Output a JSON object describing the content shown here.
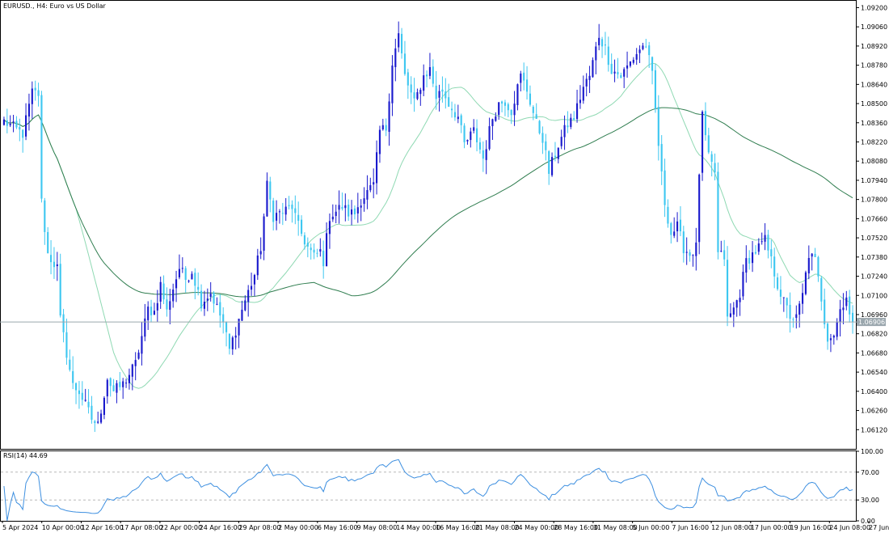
{
  "window": {
    "title": "EURUSD., H4:  Euro vs US Dollar"
  },
  "colors": {
    "background": "#ffffff",
    "bull": "#1a1acd",
    "bear": "#3ec7f0",
    "ma_fast": "#8fd9b3",
    "ma_slow": "#2f7d4f",
    "rsi_line": "#3d8fe0",
    "price_line": "#9aa6ad",
    "price_tag": "#9aa6ad"
  },
  "chart_data": [
    {
      "type": "candlestick",
      "title": "EURUSD., H4:  Euro vs US Dollar",
      "ylim": [
        1.0598,
        1.0925
      ],
      "y_ticks": [
        "1.09200",
        "1.09060",
        "1.08920",
        "1.08780",
        "1.08640",
        "1.08500",
        "1.08360",
        "1.08220",
        "1.08080",
        "1.07940",
        "1.07800",
        "1.07660",
        "1.07520",
        "1.07380",
        "1.07240",
        "1.07100",
        "1.06960",
        "1.06820",
        "1.06680",
        "1.06540",
        "1.06400",
        "1.06260",
        "1.06120"
      ],
      "x_ticks": [
        "5 Apr 2024",
        "10 Apr 00:00",
        "12 Apr 16:00",
        "17 Apr 08:00",
        "22 Apr 00:00",
        "24 Apr 16:00",
        "29 Apr 08:00",
        "2 May 00:00",
        "6 May 16:00",
        "9 May 08:00",
        "14 May 00:00",
        "16 May 16:00",
        "21 May 08:00",
        "24 May 00:00",
        "28 May 16:00",
        "31 May 08:00",
        "5 Jun 00:00",
        "7 Jun 16:00",
        "12 Jun 08:00",
        "17 Jun 00:00",
        "19 Jun 16:00",
        "24 Jun 08:00",
        "27 Jun 00:00"
      ],
      "current_price": "1.06906",
      "close_path": [
        [
          0,
          1.0837
        ],
        [
          6,
          1.0828
        ],
        [
          9,
          1.0858
        ],
        [
          11,
          1.0857
        ],
        [
          12,
          1.0778
        ],
        [
          14,
          1.074
        ],
        [
          17,
          1.073
        ],
        [
          18,
          1.0692
        ],
        [
          22,
          1.0644
        ],
        [
          24,
          1.064
        ],
        [
          28,
          1.062
        ],
        [
          30,
          1.0615
        ],
        [
          33,
          1.065
        ],
        [
          35,
          1.064
        ],
        [
          38,
          1.0645
        ],
        [
          42,
          1.066
        ],
        [
          46,
          1.07
        ],
        [
          48,
          1.0698
        ],
        [
          50,
          1.0718
        ],
        [
          52,
          1.0698
        ],
        [
          53,
          1.0708
        ],
        [
          56,
          1.073
        ],
        [
          58,
          1.0722
        ],
        [
          60,
          1.0728
        ],
        [
          63,
          1.0705
        ],
        [
          66,
          1.0712
        ],
        [
          70,
          1.069
        ],
        [
          72,
          1.067
        ],
        [
          76,
          1.07
        ],
        [
          80,
          1.0725
        ],
        [
          82,
          1.0745
        ],
        [
          84,
          1.079
        ],
        [
          86,
          1.0768
        ],
        [
          90,
          1.0772
        ],
        [
          92,
          1.0775
        ],
        [
          94,
          1.076
        ],
        [
          97,
          1.0745
        ],
        [
          99,
          1.0738
        ],
        [
          101,
          1.0742
        ],
        [
          102,
          1.0735
        ],
        [
          104,
          1.0768
        ],
        [
          108,
          1.0775
        ],
        [
          110,
          1.077
        ],
        [
          112,
          1.077
        ],
        [
          114,
          1.078
        ],
        [
          118,
          1.079
        ],
        [
          120,
          1.083
        ],
        [
          122,
          1.0832
        ],
        [
          124,
          1.088
        ],
        [
          126,
          1.09
        ],
        [
          128,
          1.087
        ],
        [
          131,
          1.085
        ],
        [
          134,
          1.087
        ],
        [
          136,
          1.0875
        ],
        [
          138,
          1.0855
        ],
        [
          140,
          1.086
        ],
        [
          142,
          1.085
        ],
        [
          145,
          1.084
        ],
        [
          147,
          1.082
        ],
        [
          150,
          1.083
        ],
        [
          153,
          1.081
        ],
        [
          156,
          1.084
        ],
        [
          158,
          1.085
        ],
        [
          160,
          1.0852
        ],
        [
          162,
          1.0845
        ],
        [
          165,
          1.087
        ],
        [
          167,
          1.086
        ],
        [
          170,
          1.0835
        ],
        [
          172,
          1.0825
        ],
        [
          174,
          1.08
        ],
        [
          177,
          1.082
        ],
        [
          180,
          1.0835
        ],
        [
          182,
          1.084
        ],
        [
          185,
          1.0862
        ],
        [
          187,
          1.087
        ],
        [
          190,
          1.09
        ],
        [
          192,
          1.089
        ],
        [
          194,
          1.0875
        ],
        [
          197,
          1.087
        ],
        [
          200,
          1.088
        ],
        [
          203,
          1.089
        ],
        [
          205,
          1.0893
        ],
        [
          207,
          1.087
        ],
        [
          209,
          1.082
        ],
        [
          210,
          1.0797
        ],
        [
          211,
          1.0778
        ],
        [
          213,
          1.0755
        ],
        [
          215,
          1.076
        ],
        [
          217,
          1.0745
        ],
        [
          219,
          1.074
        ],
        [
          221,
          1.0745
        ],
        [
          222,
          1.08
        ],
        [
          223,
          1.084
        ],
        [
          225,
          1.081
        ],
        [
          227,
          1.08
        ],
        [
          228,
          1.074
        ],
        [
          230,
          1.0738
        ],
        [
          231,
          1.0692
        ],
        [
          233,
          1.07
        ],
        [
          235,
          1.0712
        ],
        [
          237,
          1.0735
        ],
        [
          239,
          1.074
        ],
        [
          241,
          1.0745
        ],
        [
          243,
          1.075
        ],
        [
          245,
          1.0735
        ],
        [
          247,
          1.0718
        ],
        [
          249,
          1.0705
        ],
        [
          251,
          1.0695
        ],
        [
          253,
          1.0693
        ],
        [
          255,
          1.071
        ],
        [
          257,
          1.074
        ],
        [
          259,
          1.0735
        ],
        [
          261,
          1.0708
        ],
        [
          262,
          1.0692
        ],
        [
          263,
          1.068
        ],
        [
          265,
          1.0682
        ],
        [
          267,
          1.07
        ],
        [
          269,
          1.071
        ],
        [
          270,
          1.0695
        ],
        [
          271,
          1.0691
        ]
      ]
    },
    {
      "type": "line",
      "title": "RSI(14) 44.69",
      "ylim": [
        0,
        100
      ],
      "y_ticks": [
        "100.00",
        "70.00",
        "30.00",
        "0.00"
      ],
      "levels": [
        70,
        30
      ],
      "current": 44.69
    }
  ]
}
